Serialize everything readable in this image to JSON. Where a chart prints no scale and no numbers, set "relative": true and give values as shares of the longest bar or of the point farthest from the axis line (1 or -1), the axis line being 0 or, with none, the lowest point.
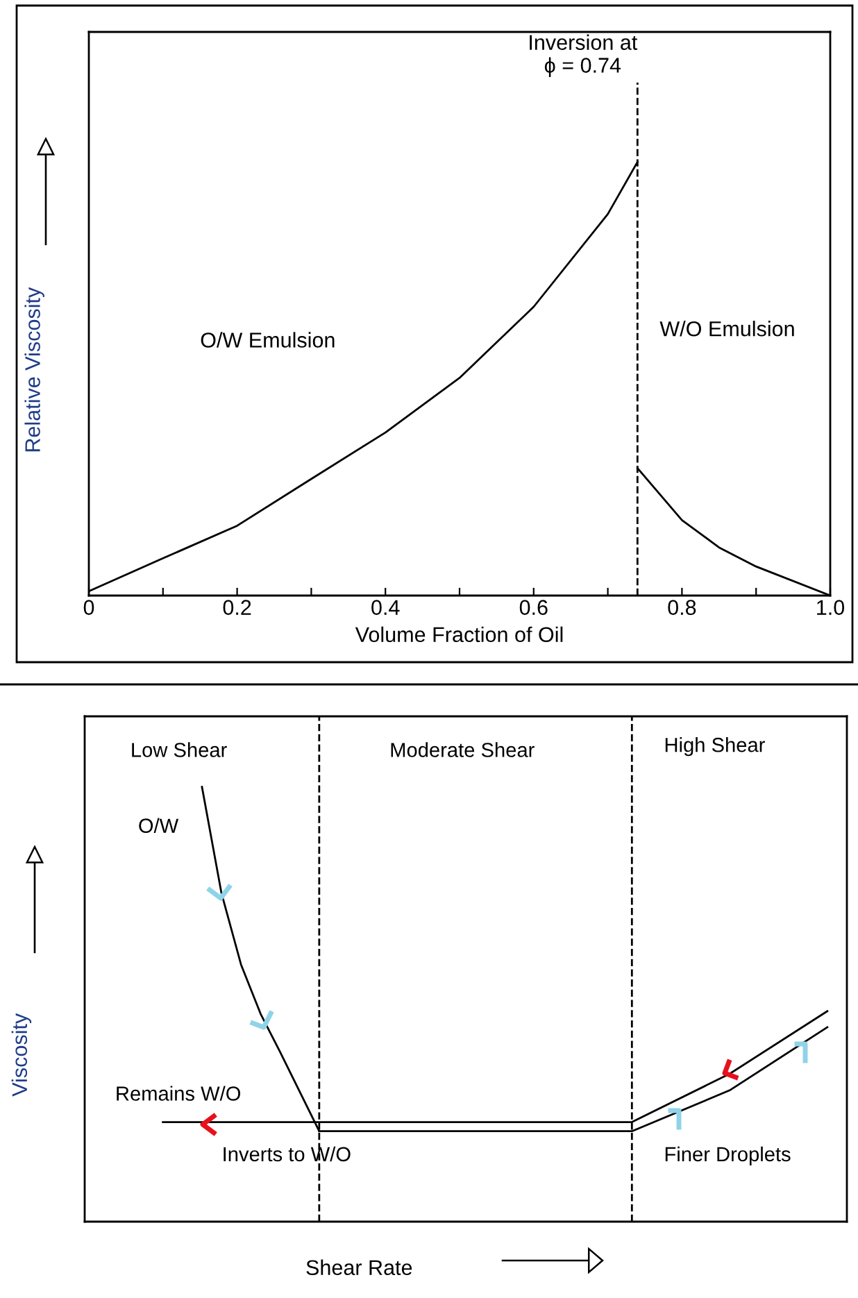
{
  "chart_data": [
    {
      "type": "line",
      "relative": true,
      "xlabel": "Volume Fraction of Oil",
      "ylabel": "Relative Viscosity",
      "xlim": [
        0,
        1
      ],
      "xticks": [
        0,
        {
          "value": 0.1,
          "label": null
        },
        0.2,
        {
          "value": 0.3,
          "label": null
        },
        0.4,
        {
          "value": 0.5,
          "label": null
        },
        0.6,
        {
          "value": 0.7,
          "label": null
        },
        0.8,
        {
          "value": 0.9,
          "label": null
        },
        {
          "value": 1,
          "label": "1.0"
        }
      ],
      "series": [
        {
          "color": "#000000",
          "x": [
            0,
            0.1,
            0.2,
            0.3,
            0.4,
            0.5,
            0.6,
            0.7,
            0.74
          ],
          "values": [
            0.01,
            0.086,
            0.161,
            0.269,
            0.376,
            0.502,
            0.666,
            0.88,
            1.0
          ]
        },
        {
          "color": "#000000",
          "x": [
            0.74,
            0.8,
            0.85,
            0.9,
            1.0
          ],
          "values": [
            0.294,
            0.174,
            0.111,
            0.067,
            0
          ]
        }
      ],
      "ref_lines": [
        {
          "axis": "x",
          "value": 0.74,
          "label": "Inversion at\nϕ = 0.74",
          "line_style": "dashed",
          "color": "#000000"
        }
      ],
      "annotations": [
        "O/W Emulsion",
        "W/O Emulsion"
      ],
      "grid": false,
      "legend": false,
      "marker": "none",
      "line_style": "solid"
    },
    {
      "type": "line",
      "relative": true,
      "xlabel": "Shear Rate",
      "ylabel": "Viscosity",
      "categories": [
        null,
        null,
        null,
        null,
        null,
        null,
        null,
        null,
        null,
        null,
        null,
        null,
        null,
        null,
        null,
        null,
        null,
        null,
        null,
        null,
        null,
        null,
        null,
        null,
        null,
        null,
        null,
        null,
        null,
        null,
        null,
        null,
        null,
        null,
        null,
        null,
        null,
        null,
        null,
        null
      ],
      "series": [
        {
          "color": "#000000",
          "values": [
            null,
            null,
            null,
            null,
            null,
            null,
            1.0,
            0.755,
            0.591,
            0.478,
            0.39,
            null,
            0.208,
            null,
            null,
            null,
            null,
            null,
            null,
            null,
            null,
            null,
            null,
            null,
            null,
            null,
            null,
            null,
            null,
            null,
            null,
            null,
            null,
            null,
            null,
            null,
            null,
            null,
            null,
            null
          ]
        },
        {
          "color": "#000000",
          "values": [
            null,
            null,
            null,
            null,
            0.229,
            null,
            null,
            null,
            null,
            null,
            null,
            null,
            null,
            null,
            null,
            null,
            null,
            null,
            null,
            null,
            null,
            null,
            null,
            null,
            null,
            null,
            null,
            null,
            0.229,
            null,
            null,
            null,
            null,
            0.34,
            null,
            null,
            null,
            null,
            0.484,
            null
          ]
        },
        {
          "color": "#000000",
          "values": [
            null,
            null,
            null,
            null,
            null,
            null,
            null,
            null,
            null,
            null,
            null,
            null,
            0.208,
            null,
            null,
            null,
            null,
            null,
            null,
            null,
            null,
            null,
            null,
            null,
            null,
            null,
            null,
            null,
            0.208,
            null,
            null,
            null,
            null,
            0.302,
            null,
            null,
            null,
            null,
            0.447,
            null
          ]
        }
      ],
      "annotations": [
        "Low Shear",
        "Moderate Shear",
        "High Shear",
        "O/W",
        "Remains W/O",
        "Inverts to W/O",
        "Finer Droplets"
      ],
      "grid": false,
      "legend": false,
      "marker": "none",
      "line_style": "solid"
    }
  ]
}
